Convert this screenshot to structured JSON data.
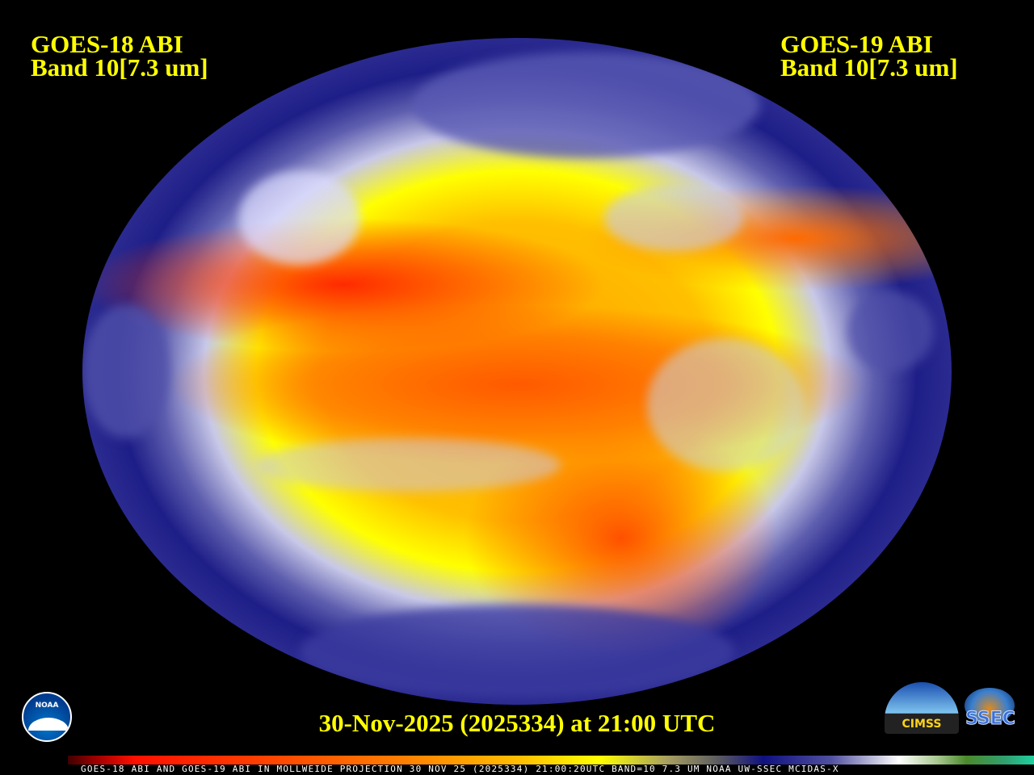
{
  "left_satellite": {
    "line1": "GOES-18 ABI",
    "line2": "Band 10[7.3 um]"
  },
  "right_satellite": {
    "line1": "GOES-19 ABI",
    "line2": "Band 10[7.3 um]"
  },
  "timestamp": "30-Nov-2025 (2025334) at 21:00 UTC",
  "colorbar_caption": "GOES-18 ABI AND GOES-19 ABI IN MOLLWEIDE PROJECTION 30 NOV 25 (2025334) 21:00:20UTC BAND=10 7.3 UM NOAA UW-SSEC MCIDAS-X",
  "logos": {
    "noaa": "NOAA",
    "cimss": "CIMSS",
    "ssec": "SSEC"
  },
  "colors": {
    "label_text": "#ffff00",
    "background": "#000000"
  }
}
